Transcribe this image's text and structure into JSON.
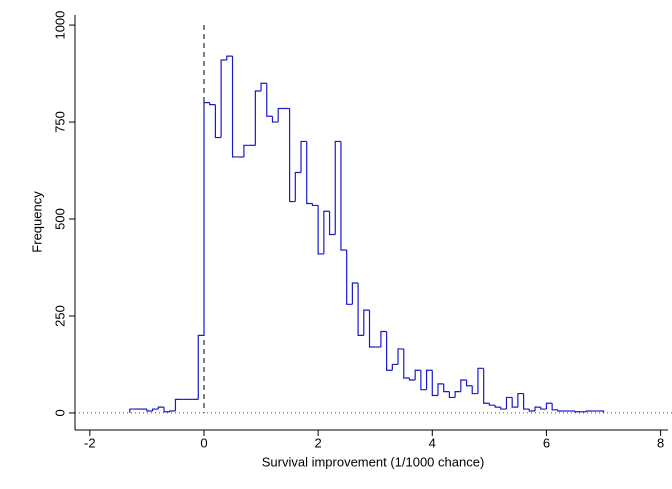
{
  "chart_data": {
    "type": "histogram",
    "xlabel": "Survival improvement (1/1000 chance)",
    "ylabel": "Frequency",
    "bins": [
      -1.3,
      -1.2,
      -1.1,
      -1.0,
      -0.9,
      -0.8,
      -0.7,
      -0.6,
      -0.5,
      -0.4,
      -0.3,
      -0.2,
      -0.1,
      0.0,
      0.1,
      0.2,
      0.3,
      0.4,
      0.5,
      0.6,
      0.7,
      0.8,
      0.9,
      1.0,
      1.1,
      1.2,
      1.3,
      1.4,
      1.5,
      1.6,
      1.7,
      1.8,
      1.9,
      2.0,
      2.1,
      2.2,
      2.3,
      2.4,
      2.5,
      2.6,
      2.7,
      2.8,
      2.9,
      3.0,
      3.1,
      3.2,
      3.3,
      3.4,
      3.5,
      3.6,
      3.7,
      3.8,
      3.9,
      4.0,
      4.1,
      4.2,
      4.3,
      4.4,
      4.5,
      4.6,
      4.7,
      4.8,
      4.9,
      5.0,
      5.1,
      5.2,
      5.3,
      5.4,
      5.5,
      5.6,
      5.7,
      5.8,
      5.9,
      6.0,
      6.1,
      6.2,
      6.3,
      6.4,
      6.5,
      6.6,
      6.7,
      6.8,
      6.9,
      7.0
    ],
    "values": [
      10,
      10,
      10,
      5,
      10,
      15,
      3,
      5,
      35,
      35,
      35,
      35,
      200,
      800,
      795,
      710,
      910,
      920,
      660,
      660,
      690,
      690,
      830,
      850,
      765,
      750,
      785,
      785,
      545,
      620,
      700,
      540,
      535,
      410,
      520,
      460,
      700,
      420,
      280,
      335,
      200,
      265,
      170,
      170,
      210,
      110,
      125,
      165,
      90,
      85,
      110,
      60,
      110,
      45,
      75,
      55,
      40,
      55,
      85,
      70,
      50,
      115,
      25,
      20,
      15,
      10,
      40,
      15,
      50,
      10,
      5,
      15,
      10,
      25,
      8,
      5,
      5,
      5,
      3,
      3,
      5,
      5,
      5
    ],
    "color": "#1a1acc",
    "xlim": [
      -2.26,
      8.2
    ],
    "ylim": [
      -44,
      1026
    ],
    "xticks": [
      -2,
      0,
      2,
      4,
      6,
      8
    ],
    "yticks": [
      0,
      250,
      500,
      750,
      1000
    ],
    "xline": 0,
    "yline": 0
  }
}
